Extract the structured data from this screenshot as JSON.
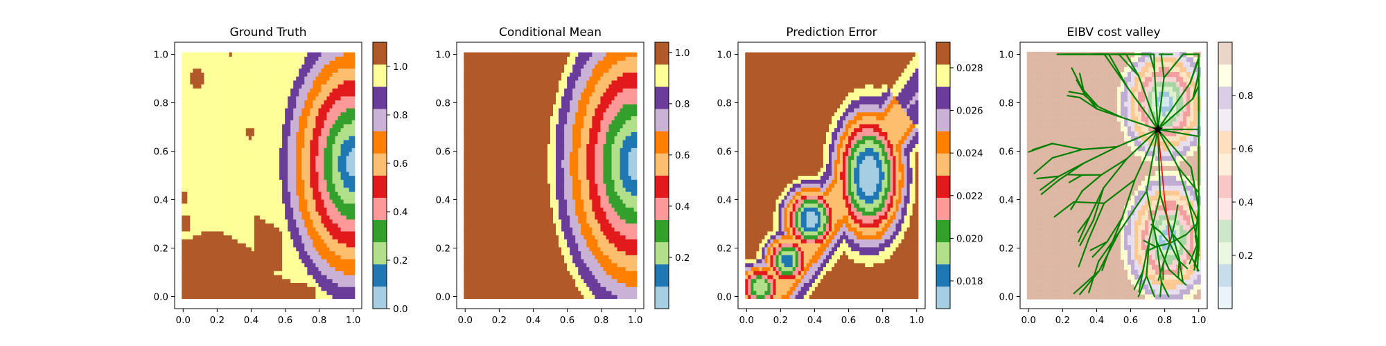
{
  "chart_data": [
    {
      "type": "heatmap",
      "title": "Ground Truth",
      "xlabel": "",
      "ylabel": "",
      "xlim": [
        -0.05,
        1.05
      ],
      "ylim": [
        -0.05,
        1.05
      ],
      "xticks": [
        "0.0",
        "0.2",
        "0.4",
        "0.6",
        "0.8",
        "1.0"
      ],
      "yticks": [
        "0.0",
        "0.2",
        "0.4",
        "0.6",
        "0.8",
        "1.0"
      ],
      "field": "gaussian_plume_with_land",
      "plume_center": [
        1.0,
        0.55
      ],
      "land_regions": "brown region lower-left (y < 0.27) and small patches",
      "colormap": "Paired",
      "colorbar": {
        "range": [
          0.0,
          1.1
        ],
        "ticks": [
          "0.0",
          "0.2",
          "0.4",
          "0.6",
          "0.8",
          "1.0"
        ],
        "levels": 12
      }
    },
    {
      "type": "heatmap",
      "title": "Conditional Mean",
      "xlabel": "",
      "ylabel": "",
      "xlim": [
        -0.05,
        1.05
      ],
      "ylim": [
        -0.05,
        1.05
      ],
      "xticks": [
        "0.0",
        "0.2",
        "0.4",
        "0.6",
        "0.8",
        "1.0"
      ],
      "yticks": [
        "0.0",
        "0.2",
        "0.4",
        "0.6",
        "0.8",
        "1.0"
      ],
      "field": "radial_gradient",
      "plume_center": [
        1.0,
        0.55
      ],
      "colormap": "Paired",
      "colorbar": {
        "range": [
          0.0,
          1.04
        ],
        "ticks": [
          "0.2",
          "0.4",
          "0.6",
          "0.8",
          "1.0"
        ],
        "levels": 12
      }
    },
    {
      "type": "heatmap",
      "title": "Prediction Error",
      "xlabel": "",
      "ylabel": "",
      "xlim": [
        -0.05,
        1.05
      ],
      "ylim": [
        -0.05,
        1.05
      ],
      "xticks": [
        "0.0",
        "0.2",
        "0.4",
        "0.6",
        "0.8",
        "1.0"
      ],
      "yticks": [
        "0.0",
        "0.2",
        "0.4",
        "0.6",
        "0.8",
        "1.0"
      ],
      "field": "diagonal_band_error",
      "minima": [
        [
          0.37,
          0.32
        ],
        [
          0.72,
          0.5
        ],
        [
          0.24,
          0.15
        ]
      ],
      "colormap": "Paired",
      "colorbar": {
        "range": [
          0.0167,
          0.0292
        ],
        "ticks": [
          "0.018",
          "0.020",
          "0.022",
          "0.024",
          "0.026",
          "0.028"
        ],
        "levels": 12
      }
    },
    {
      "type": "heatmap",
      "title": "EIBV cost valley",
      "xlabel": "",
      "ylabel": "",
      "xlim": [
        -0.05,
        1.05
      ],
      "ylim": [
        -0.05,
        1.05
      ],
      "xticks": [
        "0.0",
        "0.2",
        "0.4",
        "0.6",
        "0.8",
        "1.0"
      ],
      "yticks": [
        "0.0",
        "0.2",
        "0.4",
        "0.6",
        "0.8",
        "1.0"
      ],
      "field": "cost_valley_with_rrt_tree",
      "tree_root": [
        0.76,
        0.69
      ],
      "path_target": [
        0.83,
        0.22
      ],
      "colormap": "Paired",
      "colorbar": {
        "range": [
          0.0,
          1.0
        ],
        "ticks": [
          "0.2",
          "0.4",
          "0.6",
          "0.8"
        ],
        "levels": 12,
        "alpha": 0.25
      }
    }
  ],
  "colors": {
    "paired": [
      "#a6cee3",
      "#1f78b4",
      "#b2df8a",
      "#33a02c",
      "#fb9a99",
      "#e31a1c",
      "#fdbf6f",
      "#ff7f00",
      "#cab2d6",
      "#6a3d9a",
      "#ffff99",
      "#b15928"
    ],
    "tree": "#008000",
    "path": "#ff0000",
    "star": "#000000",
    "grid_dot": "#a0a0a0"
  }
}
